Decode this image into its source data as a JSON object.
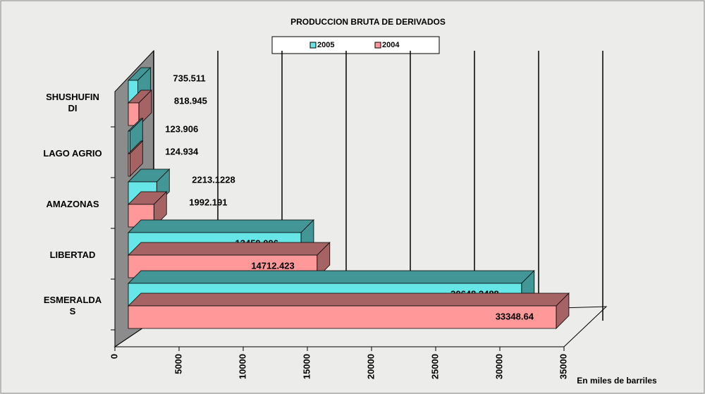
{
  "chart_data": {
    "type": "bar3d",
    "orientation": "horizontal",
    "title": "PRODUCCION BRUTA DE DERIVADOS",
    "x_label": "En miles de barriles",
    "categories": [
      "ESMERALDA\nS",
      "LIBERTAD",
      "AMAZONAS",
      "LAGO AGRIO",
      "SHUSHUFIN\nDI"
    ],
    "series": [
      {
        "name": "2005",
        "color": "#66e6e6",
        "values": [
          30648.2488,
          13459.096,
          2213.1228,
          123.906,
          735.511
        ]
      },
      {
        "name": "2004",
        "color": "#ff9999",
        "values": [
          33348.64,
          14712.423,
          1992.191,
          124.934,
          818.945
        ]
      }
    ],
    "xlim": [
      0,
      35000
    ],
    "xticks": [
      0,
      5000,
      10000,
      15000,
      20000,
      25000,
      30000,
      35000
    ],
    "grid": true,
    "legend": "top"
  }
}
